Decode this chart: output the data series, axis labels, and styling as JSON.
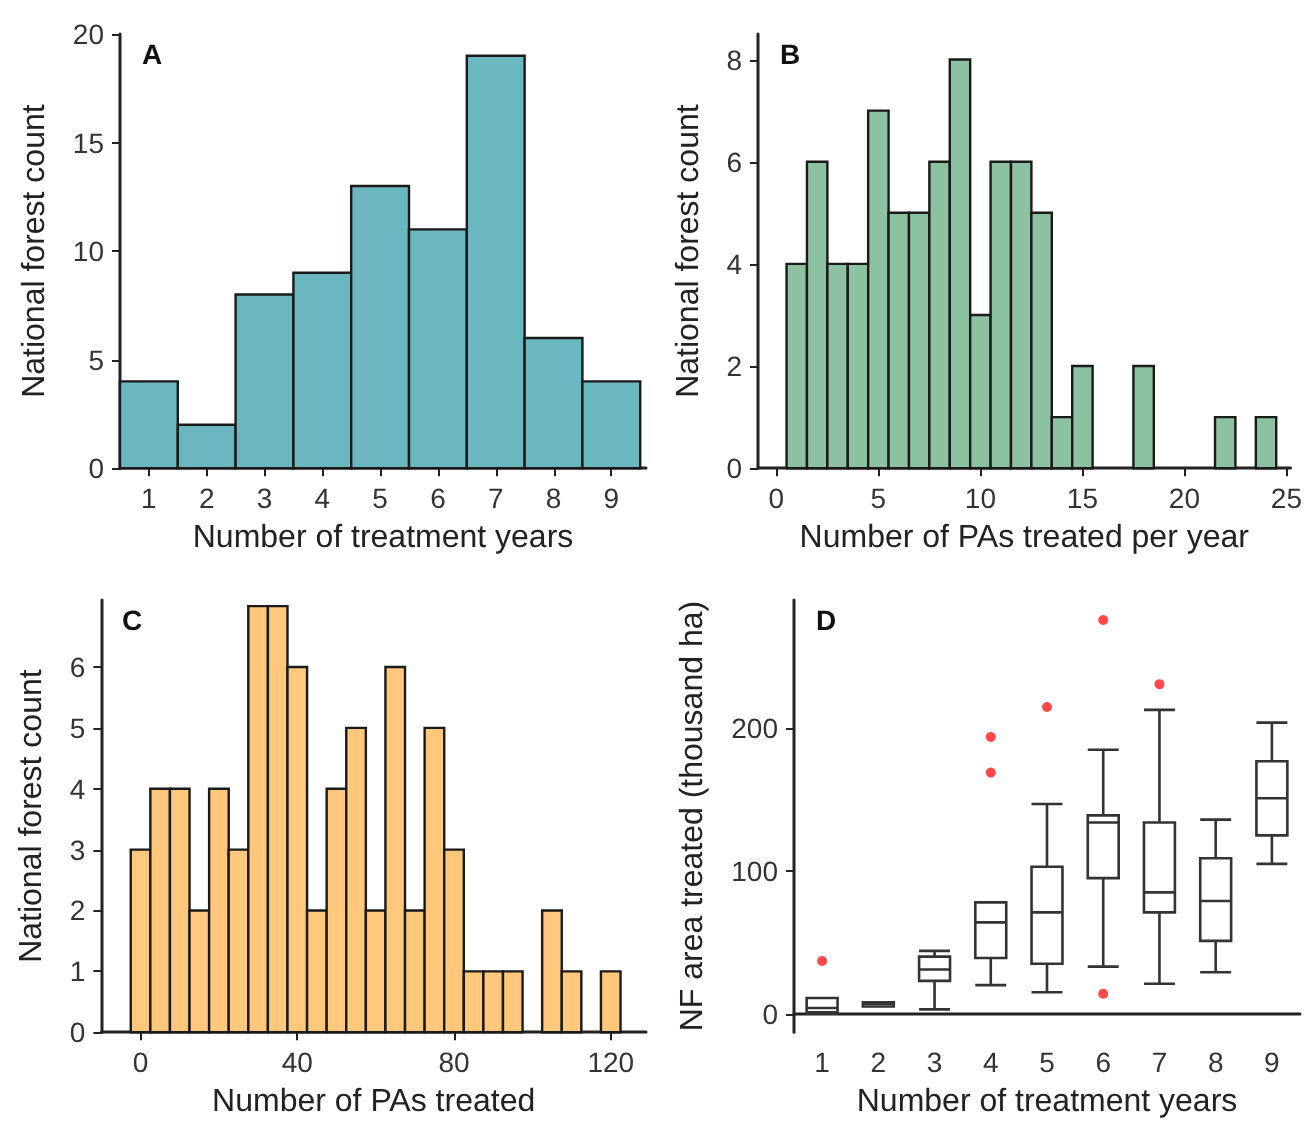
{
  "chart_data": [
    {
      "type": "histogram",
      "title": "A",
      "xlabel": "Number of treatment years",
      "ylabel": "National forest count",
      "color": "#6ab7bf",
      "bins": [
        0.5,
        1.5,
        2.5,
        3.5,
        4.5,
        5.5,
        6.5,
        7.5,
        8.5,
        9.5
      ],
      "values": [
        4,
        2,
        8,
        9,
        13,
        11,
        19,
        6,
        4
      ],
      "xlim": [
        0.5,
        9.6
      ],
      "xticks": [
        1,
        2,
        3,
        4,
        5,
        6,
        7,
        8,
        9
      ],
      "ylim": [
        0,
        20
      ],
      "yticks": [
        0,
        5,
        10,
        15,
        20
      ]
    },
    {
      "type": "histogram",
      "title": "B",
      "xlabel": "Number of PAs treated per year",
      "ylabel": "National forest count",
      "color": "#8cc1a2",
      "bins": [
        0.5,
        1.5,
        2.5,
        3.5,
        4.5,
        5.5,
        6.5,
        7.5,
        8.5,
        9.5,
        10.5,
        11.5,
        12.5,
        13.5,
        14.5,
        15.5,
        16.5,
        17.5,
        18.5,
        19.5,
        20.5,
        21.5,
        22.5,
        23.5,
        24.5
      ],
      "values": [
        4,
        6,
        4,
        4,
        7,
        5,
        5,
        6,
        8,
        3,
        6,
        6,
        5,
        1,
        2,
        0,
        0,
        2,
        0,
        0,
        0,
        1,
        0,
        1
      ],
      "xlim": [
        -0.9,
        25.2
      ],
      "xticks": [
        0,
        5,
        10,
        15,
        20,
        25
      ],
      "ylim": [
        0,
        8.5
      ],
      "yticks": [
        0,
        2,
        4,
        6,
        8
      ]
    },
    {
      "type": "histogram",
      "title": "C",
      "xlabel": "Number of PAs treated",
      "ylabel": "National forest count",
      "color": "#ffc87c",
      "bins": [
        -2.5,
        2.5,
        7.5,
        12.5,
        17.5,
        22.5,
        27.5,
        32.5,
        37.5,
        42.5,
        47.5,
        52.5,
        57.5,
        62.5,
        67.5,
        72.5,
        77.5,
        82.5,
        87.5,
        92.5,
        97.5,
        102.5,
        107.5,
        112.5,
        117.5,
        122.5
      ],
      "values": [
        3,
        4,
        4,
        2,
        4,
        3,
        7,
        7,
        6,
        2,
        4,
        5,
        2,
        6,
        2,
        5,
        3,
        1,
        1,
        1,
        0,
        2,
        1,
        0,
        1
      ],
      "xlim": [
        -10,
        129
      ],
      "xticks": [
        0,
        40,
        80,
        120
      ],
      "ylim": [
        0,
        7.1
      ],
      "yticks": [
        0,
        1,
        2,
        3,
        4,
        5,
        6
      ]
    },
    {
      "type": "box",
      "title": "D",
      "xlabel": "Number of treatment years",
      "ylabel": "NF area treated (thousand ha)",
      "categories": [
        "1",
        "2",
        "3",
        "4",
        "5",
        "6",
        "7",
        "8",
        "9"
      ],
      "boxes": [
        {
          "low": 0,
          "q1": 1,
          "median": 4,
          "q3": 11,
          "high": 11,
          "outliers": [
            37
          ]
        },
        {
          "low": 5,
          "q1": 5,
          "median": 7,
          "q3": 8,
          "high": 8
        },
        {
          "low": 3,
          "q1": 23,
          "median": 31,
          "q3": 40,
          "high": 44
        },
        {
          "low": 20,
          "q1": 39,
          "median": 64,
          "q3": 78,
          "high": 78,
          "outliers": [
            169,
            194
          ]
        },
        {
          "low": 15,
          "q1": 35,
          "median": 71,
          "q3": 103,
          "high": 147,
          "outliers": [
            215
          ]
        },
        {
          "low": 33,
          "q1": 95,
          "median": 134,
          "q3": 139,
          "high": 185,
          "outliers": [
            14,
            276
          ]
        },
        {
          "low": 21,
          "q1": 71,
          "median": 85,
          "q3": 134,
          "high": 213,
          "outliers": [
            231
          ]
        },
        {
          "low": 29,
          "q1": 51,
          "median": 79,
          "q3": 109,
          "high": 136
        },
        {
          "low": 105,
          "q1": 125,
          "median": 151,
          "q3": 177,
          "high": 204
        }
      ],
      "ylim": [
        -13,
        290
      ],
      "yticks": [
        0,
        100,
        200
      ]
    }
  ]
}
